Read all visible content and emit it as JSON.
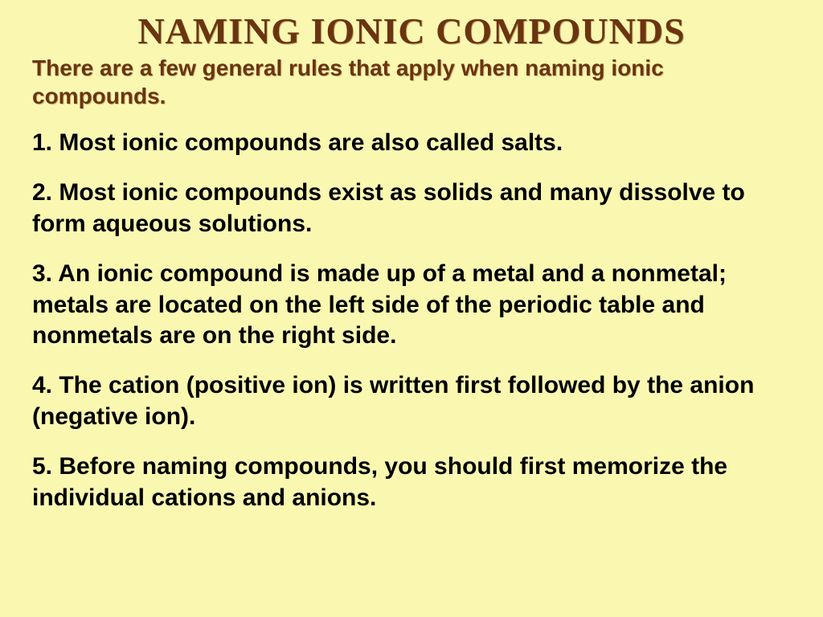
{
  "colors": {
    "background": "#faf8b0",
    "title_color": "#6b3410",
    "subtitle_color": "#6b3410",
    "rule_color": "#000000"
  },
  "typography": {
    "title_fontsize": 46,
    "title_family": "Times New Roman",
    "subtitle_fontsize": 28,
    "rule_fontsize": 30,
    "body_family": "Arial"
  },
  "title": "NAMING  IONIC COMPOUNDS",
  "subtitle": "There are a few general rules that apply when naming ionic compounds.",
  "rules": [
    "1.  Most ionic compounds are also called salts.",
    "2.  Most ionic compounds exist as solids and many dissolve to form aqueous solutions.",
    "3.  An ionic compound is made up of a metal and a nonmetal; metals are located on the left side of the periodic table and nonmetals are on the right side.",
    "4.  The cation (positive ion) is written first followed by the anion (negative ion).",
    "5.  Before naming compounds, you should first memorize the individual cations and anions."
  ]
}
